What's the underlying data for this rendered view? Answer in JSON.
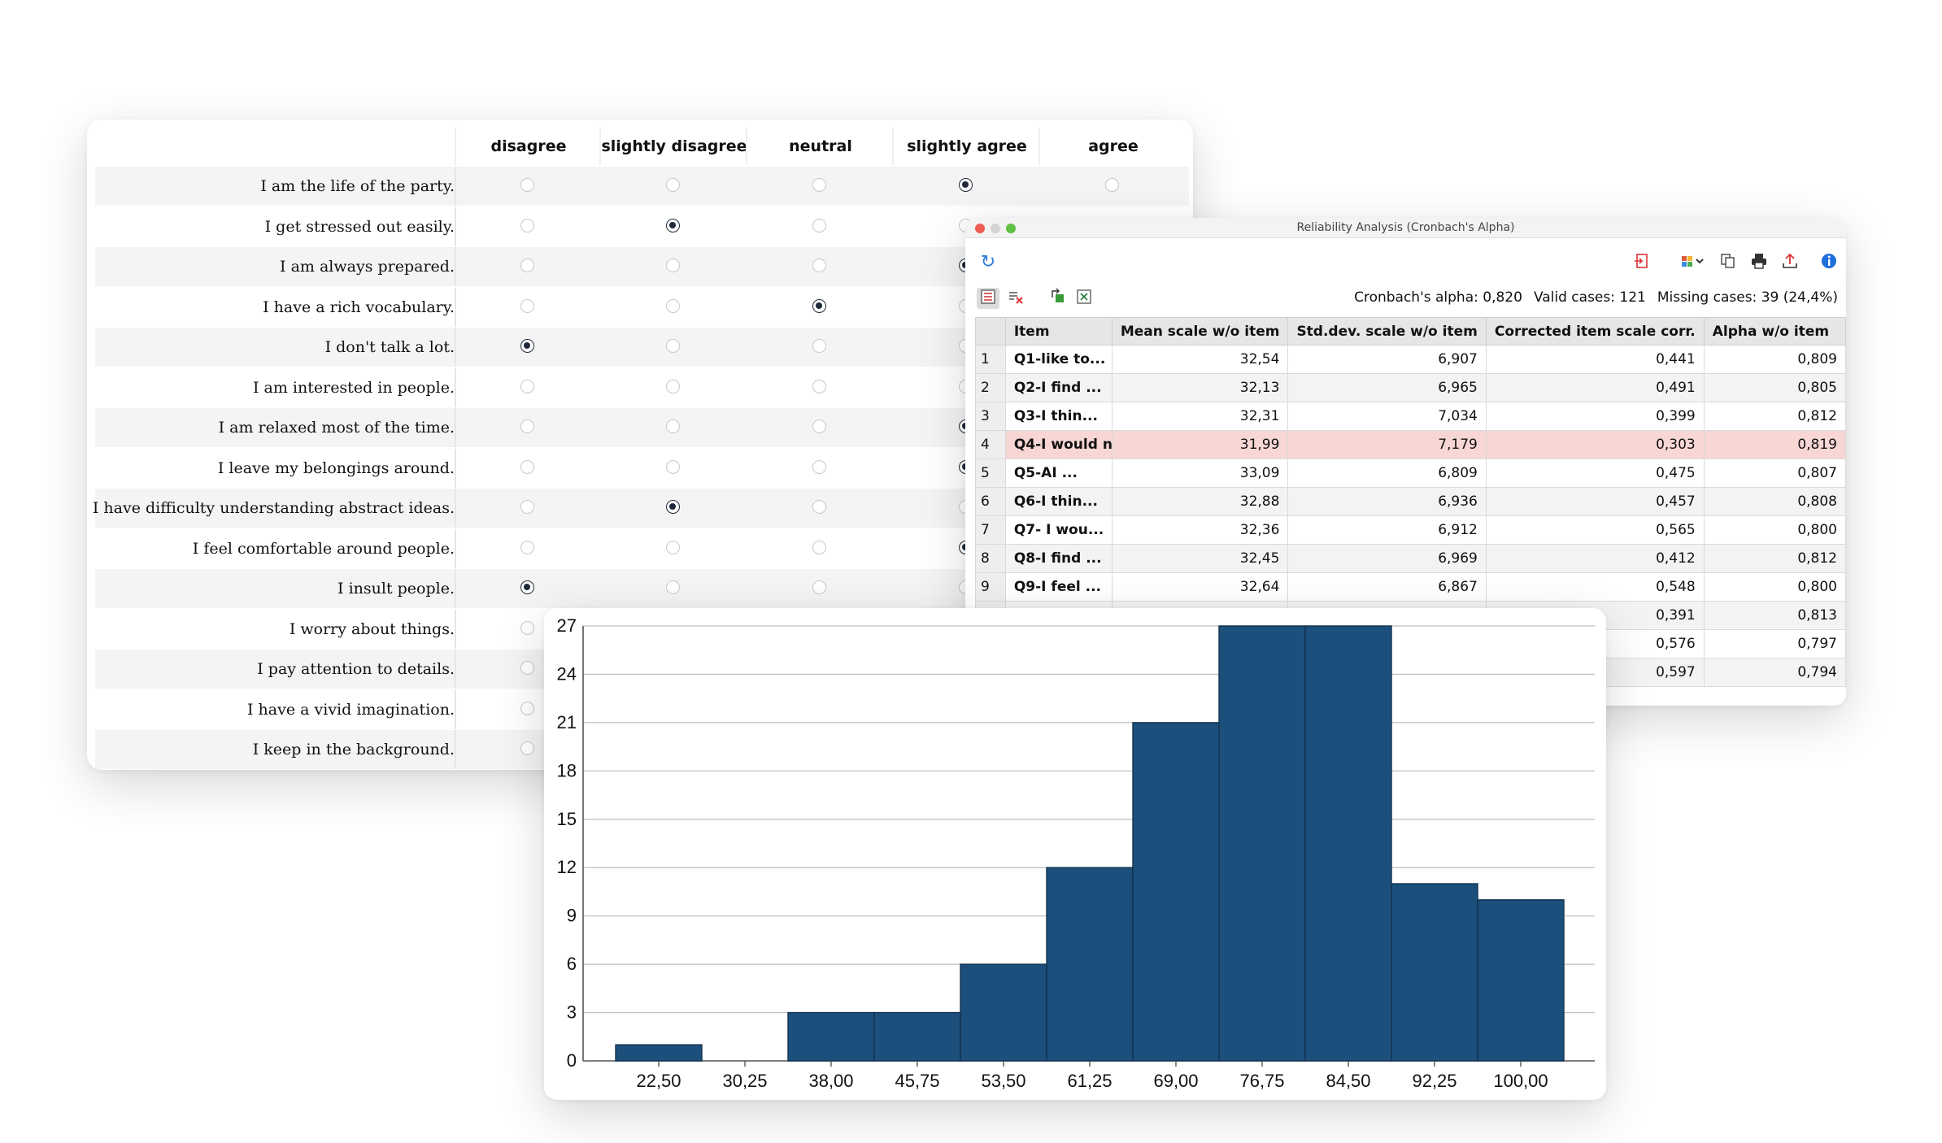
{
  "survey": {
    "columns": [
      "disagree",
      "slightly disagree",
      "neutral",
      "slightly agree",
      "agree"
    ],
    "items": [
      {
        "text": "I am the life of the party.",
        "selected": 3
      },
      {
        "text": "I get stressed out easily.",
        "selected": 1
      },
      {
        "text": "I am always prepared.",
        "selected": 3
      },
      {
        "text": "I have a rich vocabulary.",
        "selected": 2
      },
      {
        "text": "I don't talk a lot.",
        "selected": 0
      },
      {
        "text": "I am interested in people.",
        "selected": -1
      },
      {
        "text": "I am relaxed most of the time.",
        "selected": 3
      },
      {
        "text": "I leave my belongings around.",
        "selected": 3
      },
      {
        "text": "I have difficulty understanding abstract ideas.",
        "selected": 1
      },
      {
        "text": "I feel comfortable around people.",
        "selected": 3
      },
      {
        "text": "I insult people.",
        "selected": 0
      },
      {
        "text": "I worry about things.",
        "selected": -1
      },
      {
        "text": "I pay attention to details.",
        "selected": -1
      },
      {
        "text": "I have a vivid imagination.",
        "selected": -1
      },
      {
        "text": "I keep in the background.",
        "selected": -1
      }
    ]
  },
  "reliability": {
    "window_title": "Reliability Analysis (Cronbach's Alpha)",
    "cronbach_alpha": "Cronbach's alpha: 0,820",
    "valid_cases": "Valid cases: 121",
    "missing_cases": "Missing cases: 39 (24,4%)",
    "columns": [
      "Item",
      "Mean scale w/o item",
      "Std.dev. scale w/o item",
      "Corrected item scale corr.",
      "Alpha w/o item"
    ],
    "rows": [
      {
        "idx": "1",
        "item": "Q1-like to...",
        "mean": "32,54",
        "sd": "6,907",
        "corr": "0,441",
        "alpha": "0,809"
      },
      {
        "idx": "2",
        "item": "Q2-I find ...",
        "mean": "32,13",
        "sd": "6,965",
        "corr": "0,491",
        "alpha": "0,805"
      },
      {
        "idx": "3",
        "item": "Q3-I thin...",
        "mean": "32,31",
        "sd": "7,034",
        "corr": "0,399",
        "alpha": "0,812"
      },
      {
        "idx": "4",
        "item": "Q4-I would n",
        "mean": "31,99",
        "sd": "7,179",
        "corr": "0,303",
        "alpha": "0,819"
      },
      {
        "idx": "5",
        "item": "Q5-AI ...",
        "mean": "33,09",
        "sd": "6,809",
        "corr": "0,475",
        "alpha": "0,807"
      },
      {
        "idx": "6",
        "item": "Q6-I thin...",
        "mean": "32,88",
        "sd": "6,936",
        "corr": "0,457",
        "alpha": "0,808"
      },
      {
        "idx": "7",
        "item": "Q7- I wou...",
        "mean": "32,36",
        "sd": "6,912",
        "corr": "0,565",
        "alpha": "0,800"
      },
      {
        "idx": "8",
        "item": "Q8-I find ...",
        "mean": "32,45",
        "sd": "6,969",
        "corr": "0,412",
        "alpha": "0,812"
      },
      {
        "idx": "9",
        "item": "Q9-I feel ...",
        "mean": "32,64",
        "sd": "6,867",
        "corr": "0,548",
        "alpha": "0,800"
      },
      {
        "idx": "",
        "item": "",
        "mean": "",
        "sd": "",
        "corr": "0,391",
        "alpha": "0,813"
      },
      {
        "idx": "",
        "item": "",
        "mean": "",
        "sd": "",
        "corr": "0,576",
        "alpha": "0,797"
      },
      {
        "idx": "",
        "item": "",
        "mean": "",
        "sd": "",
        "corr": "0,597",
        "alpha": "0,794"
      }
    ],
    "icons": [
      "refresh-icon",
      "import-icon",
      "chart-options-icon",
      "copy-icon",
      "print-icon",
      "export-icon",
      "info-icon",
      "list-view-icon",
      "clear-icon",
      "move-icon",
      "excel-icon"
    ]
  },
  "chart_data": {
    "type": "bar",
    "categories": [
      "22,50",
      "30,25",
      "38,00",
      "45,75",
      "53,50",
      "61,25",
      "69,00",
      "76,75",
      "84,50",
      "92,25",
      "100,00"
    ],
    "values": [
      1,
      0,
      3,
      3,
      6,
      12,
      21,
      27,
      27,
      11,
      10
    ],
    "yticks": [
      0,
      3,
      6,
      9,
      12,
      15,
      18,
      21,
      24,
      27
    ],
    "ylim": [
      0,
      27
    ],
    "title": "",
    "xlabel": "",
    "ylabel": "",
    "bar_color": "#1c4f7c",
    "grid": true
  }
}
